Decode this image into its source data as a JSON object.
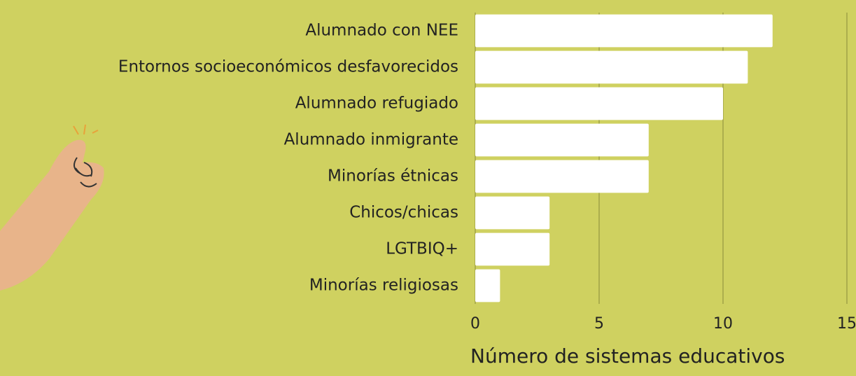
{
  "chart_data": {
    "type": "bar",
    "orientation": "horizontal",
    "categories": [
      "Alumnado con NEE",
      "Entornos socioeconómicos desfavorecidos",
      "Alumnado refugiado",
      "Alumnado inmigrante",
      "Minorías étnicas",
      "Chicos/chicas",
      "LGTBIQ+",
      "Minorías religiosas"
    ],
    "values": [
      12,
      11,
      10,
      7,
      7,
      3,
      3,
      1
    ],
    "color": "#ffffff",
    "xlabel": "Número de sistemas educativos",
    "xlim": [
      0,
      15
    ],
    "xticks": [
      0,
      5,
      10,
      15
    ],
    "grid": true
  }
}
